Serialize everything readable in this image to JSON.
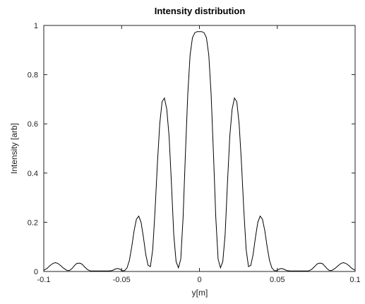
{
  "chart_data": {
    "type": "line",
    "title": "Intensity distribution",
    "xlabel": "y[m]",
    "ylabel": "Intensity [arb]",
    "xlim": [
      -0.1,
      0.1
    ],
    "ylim": [
      0,
      1
    ],
    "xticks": [
      -0.1,
      -0.05,
      0,
      0.05,
      0.1
    ],
    "xtick_labels": [
      "-0.1",
      "-0.05",
      "0",
      "0.05",
      "0.1"
    ],
    "yticks": [
      0,
      0.2,
      0.4,
      0.6,
      0.8,
      1
    ],
    "ytick_labels": [
      "0",
      "0.2",
      "0.4",
      "0.6",
      "0.8",
      "1"
    ],
    "grid": false,
    "legend": "none",
    "line_color": "#000000",
    "series": [
      {
        "x": [
          -0.1,
          -0.098,
          -0.096,
          -0.094,
          -0.0925,
          -0.091,
          -0.089,
          -0.087,
          -0.085,
          -0.0835,
          -0.082,
          -0.0805,
          -0.079,
          -0.0775,
          -0.0765,
          -0.0755,
          -0.074,
          -0.072,
          -0.07,
          -0.068,
          -0.066,
          -0.064,
          -0.062,
          -0.06,
          -0.058,
          -0.056,
          -0.054,
          -0.0525,
          -0.051,
          -0.0495,
          -0.048,
          -0.0465,
          -0.045,
          -0.0435,
          -0.042,
          -0.0405,
          -0.039,
          -0.0375,
          -0.036,
          -0.0345,
          -0.033,
          -0.0315,
          -0.03,
          -0.0285,
          -0.027,
          -0.0255,
          -0.024,
          -0.0225,
          -0.021,
          -0.0195,
          -0.018,
          -0.0165,
          -0.015,
          -0.0135,
          -0.012,
          -0.0105,
          -0.009,
          -0.0075,
          -0.006,
          -0.0045,
          -0.003,
          -0.0015,
          0,
          0.0015,
          0.003,
          0.0045,
          0.006,
          0.0075,
          0.009,
          0.0105,
          0.012,
          0.0135,
          0.015,
          0.0165,
          0.018,
          0.0195,
          0.021,
          0.0225,
          0.024,
          0.0255,
          0.027,
          0.0285,
          0.03,
          0.0315,
          0.033,
          0.0345,
          0.036,
          0.0375,
          0.039,
          0.0405,
          0.042,
          0.0435,
          0.045,
          0.0465,
          0.048,
          0.0495,
          0.051,
          0.0525,
          0.054,
          0.056,
          0.058,
          0.06,
          0.062,
          0.064,
          0.066,
          0.068,
          0.07,
          0.072,
          0.074,
          0.0755,
          0.0765,
          0.0775,
          0.079,
          0.0805,
          0.082,
          0.0835,
          0.085,
          0.087,
          0.089,
          0.091,
          0.0925,
          0.094,
          0.096,
          0.098,
          0.1
        ],
        "y": [
          0.005,
          0.012,
          0.024,
          0.033,
          0.036,
          0.033,
          0.023,
          0.012,
          0.004,
          0.004,
          0.011,
          0.022,
          0.032,
          0.034,
          0.033,
          0.03,
          0.02,
          0.008,
          0.002,
          0.002,
          0.002,
          0.002,
          0.002,
          0.002,
          0.002,
          0.004,
          0.01,
          0.012,
          0.009,
          0.003,
          0.004,
          0.015,
          0.045,
          0.1,
          0.165,
          0.212,
          0.225,
          0.2,
          0.14,
          0.07,
          0.025,
          0.02,
          0.09,
          0.25,
          0.44,
          0.6,
          0.69,
          0.705,
          0.66,
          0.55,
          0.36,
          0.15,
          0.04,
          0.015,
          0.05,
          0.22,
          0.48,
          0.72,
          0.88,
          0.95,
          0.97,
          0.975,
          0.975,
          0.975,
          0.97,
          0.95,
          0.88,
          0.72,
          0.48,
          0.22,
          0.05,
          0.015,
          0.04,
          0.15,
          0.36,
          0.55,
          0.66,
          0.705,
          0.69,
          0.6,
          0.44,
          0.25,
          0.09,
          0.02,
          0.025,
          0.07,
          0.14,
          0.2,
          0.225,
          0.212,
          0.165,
          0.1,
          0.045,
          0.015,
          0.004,
          0.003,
          0.009,
          0.012,
          0.01,
          0.004,
          0.002,
          0.002,
          0.002,
          0.002,
          0.002,
          0.002,
          0.002,
          0.008,
          0.02,
          0.03,
          0.033,
          0.034,
          0.032,
          0.022,
          0.011,
          0.004,
          0.004,
          0.012,
          0.023,
          0.033,
          0.036,
          0.033,
          0.024,
          0.012,
          0.005
        ]
      }
    ]
  }
}
